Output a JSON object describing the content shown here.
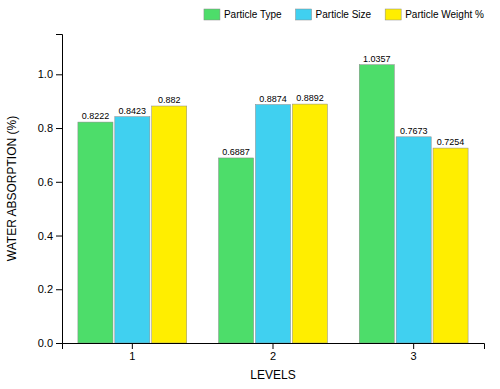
{
  "chart_data": {
    "type": "bar",
    "categories": [
      "1",
      "2",
      "3"
    ],
    "series": [
      {
        "name": "Particle Type",
        "color": "#4ddd6a",
        "values": [
          0.8222,
          0.6887,
          1.0357
        ]
      },
      {
        "name": "Particle Size",
        "color": "#40d0f0",
        "values": [
          0.8423,
          0.8874,
          0.7673
        ]
      },
      {
        "name": "Particle Weight %",
        "color": "#ffee00",
        "values": [
          0.882,
          0.8892,
          0.7254
        ]
      }
    ],
    "xlabel": "LEVELS",
    "ylabel": "WATER ABSORPTION (%)",
    "ylim": [
      0.0,
      1.15
    ],
    "yticks": [
      {
        "value": 0.0,
        "label": "0.0"
      },
      0.2,
      0.4,
      0.6,
      0.8,
      {
        "value": 1.0,
        "label": "1.0"
      }
    ],
    "data_labels": true,
    "legend": "upper right",
    "grid": false
  }
}
